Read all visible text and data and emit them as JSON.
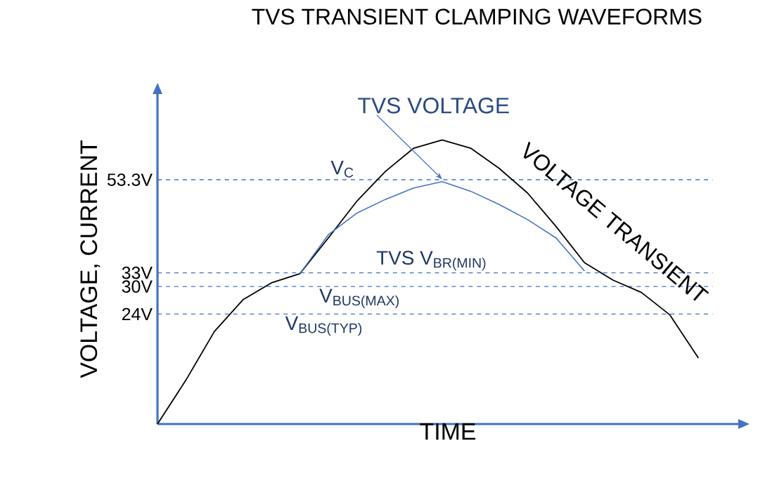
{
  "chart_data": {
    "type": "line",
    "title": "TVS TRANSIENT CLAMPING WAVEFORMS",
    "xlabel": "TIME",
    "ylabel": "VOLTAGE, CURRENT",
    "categories": [
      null,
      null,
      null,
      null,
      null,
      null,
      null,
      null,
      null,
      null,
      null,
      null,
      null,
      null,
      null,
      null,
      null,
      null,
      null,
      null
    ],
    "series": [
      {
        "name": "VOLTAGE TRANSIENT",
        "color": "#000000",
        "values": [
          0,
          9.6,
          20.2,
          27.1,
          30.8,
          32.8,
          40.6,
          48.6,
          55.1,
          60.2,
          62.0,
          60.2,
          55.8,
          50.4,
          43.1,
          35.2,
          31.4,
          28.7,
          23.8,
          14.4
        ]
      },
      {
        "name": "TVS VOLTAGE",
        "color": "#4472c4",
        "values": [
          null,
          null,
          null,
          null,
          null,
          32.8,
          41.3,
          46.0,
          49.0,
          51.5,
          52.9,
          50.8,
          47.9,
          44.6,
          40.6,
          33.4,
          null,
          null,
          null,
          null
        ]
      }
    ],
    "ylim": [
      0,
      72
    ],
    "yticks": [
      {
        "value": 24,
        "label": "24V"
      },
      {
        "value": 30,
        "label": "30V"
      },
      {
        "value": 33,
        "label": "33V"
      },
      {
        "value": 53.3,
        "label": "53.3V"
      }
    ],
    "ref_lines": [
      {
        "axis": "y",
        "value": 53.3,
        "label": "V$_{C}$",
        "color": "#4472c4",
        "line_style": "dashed"
      },
      {
        "axis": "y",
        "value": 33,
        "label": "TVS V$_{BR(MIN)}$",
        "color": "#4472c4",
        "line_style": "dashed"
      },
      {
        "axis": "y",
        "value": 30,
        "label": "V$_{BUS(MAX)}$",
        "color": "#4472c4",
        "line_style": "dashed"
      },
      {
        "axis": "y",
        "value": 24,
        "label": "V$_{BUS(TYP)}$",
        "color": "#4472c4",
        "line_style": "dashed"
      }
    ],
    "grid": false,
    "marker": "none",
    "line_style": "solid"
  }
}
